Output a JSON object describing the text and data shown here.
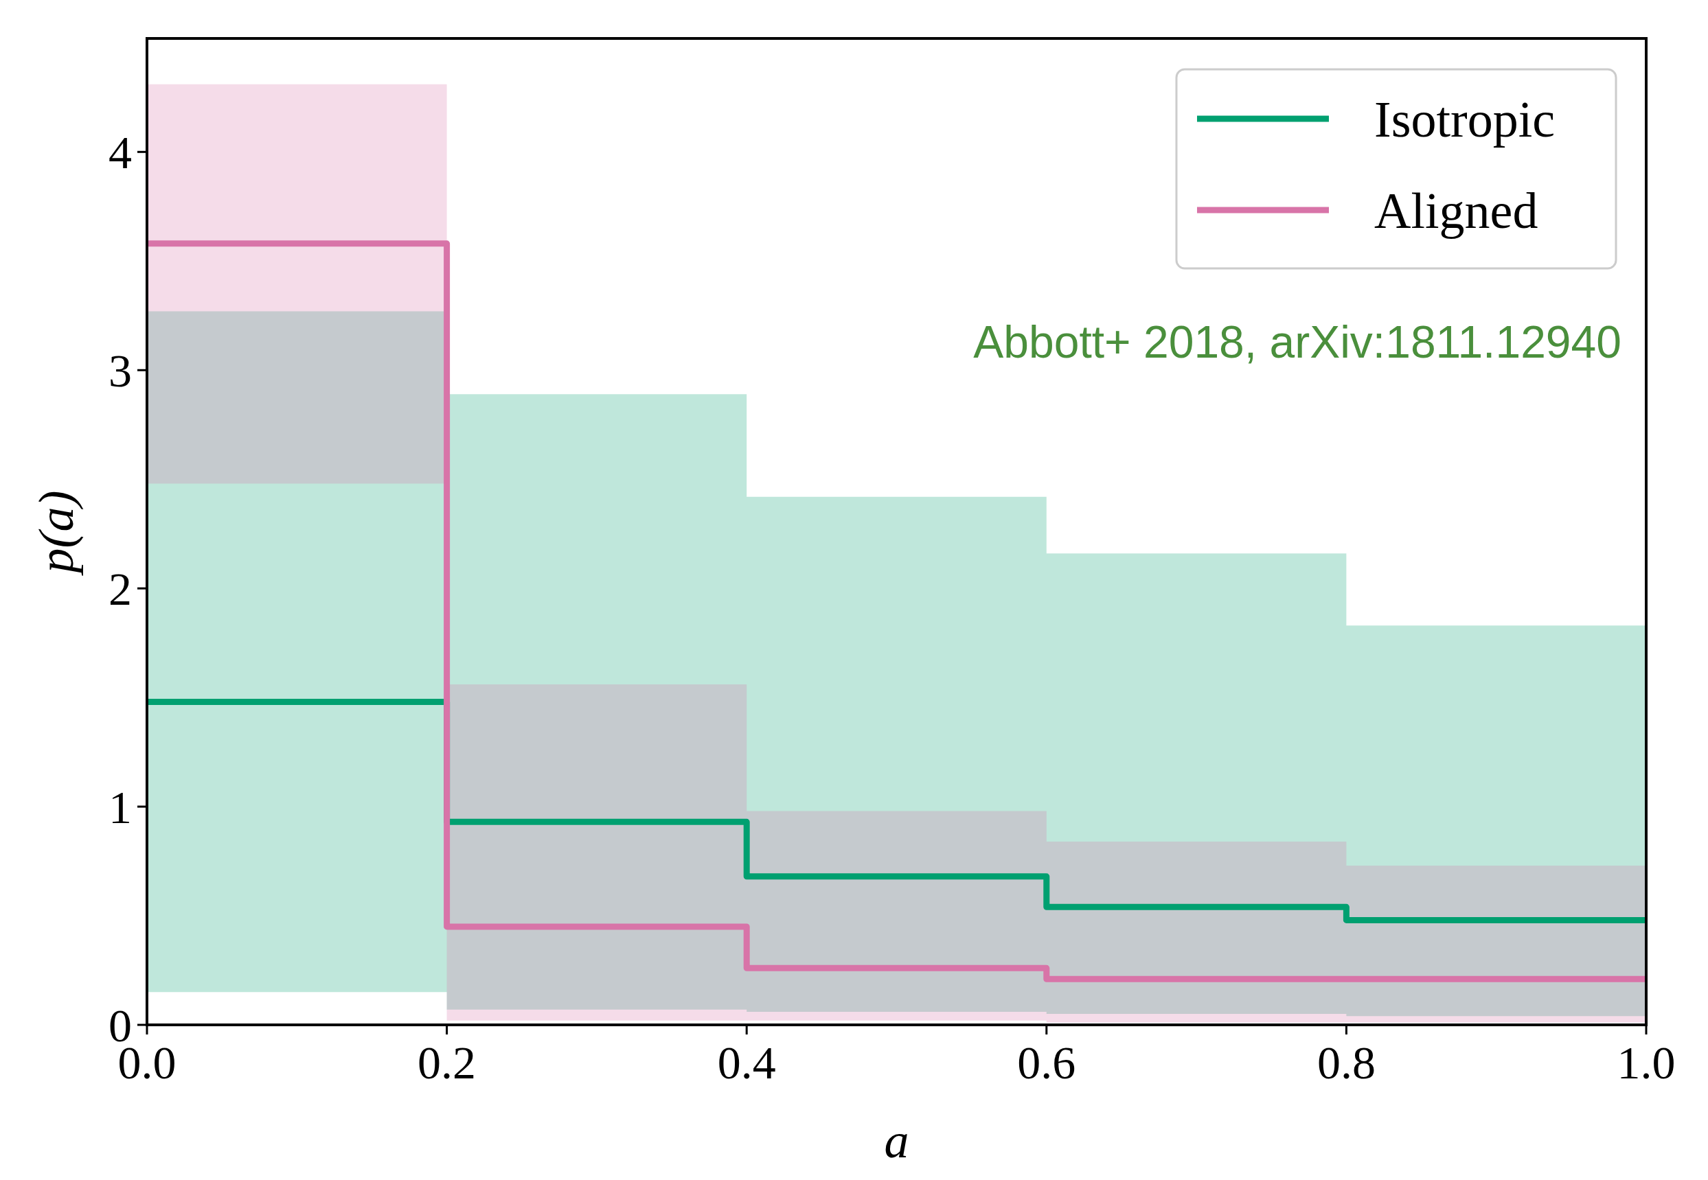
{
  "chart_data": {
    "type": "step",
    "xlabel": "a",
    "ylabel": "p(a)",
    "x": [
      0,
      0.2,
      0.4,
      0.6,
      0.8,
      1.0
    ],
    "series": [
      {
        "name": "Isotropic",
        "color": "#00a070",
        "values": [
          1.48,
          0.93,
          0.68,
          0.54,
          0.48,
          0.48
        ],
        "lower": [
          0.15,
          0.07,
          0.06,
          0.05,
          0.04,
          0.04
        ],
        "upper": [
          3.27,
          2.89,
          2.42,
          2.16,
          1.83,
          1.83
        ]
      },
      {
        "name": "Aligned",
        "color": "#d874a8",
        "values": [
          3.58,
          0.45,
          0.26,
          0.21,
          0.21,
          0.21
        ],
        "lower": [
          2.48,
          0.02,
          0.02,
          0.01,
          0.01,
          0.01
        ],
        "upper": [
          4.31,
          1.56,
          0.98,
          0.84,
          0.73,
          0.73
        ]
      }
    ],
    "xlim": [
      0,
      1
    ],
    "ylim": [
      0,
      4.52
    ],
    "xticks": [
      {
        "value": 0,
        "label": "0.0"
      },
      {
        "value": 0.2,
        "label": "0.2"
      },
      {
        "value": 0.4,
        "label": "0.4"
      },
      {
        "value": 0.6,
        "label": "0.6"
      },
      {
        "value": 0.8,
        "label": "0.8"
      },
      {
        "value": 1,
        "label": "1.0"
      }
    ],
    "yticks": [
      0,
      1,
      2,
      3,
      4
    ],
    "legend": "top right",
    "annotations": [
      "Abbott+ 2018, arXiv:1811.12940"
    ]
  }
}
